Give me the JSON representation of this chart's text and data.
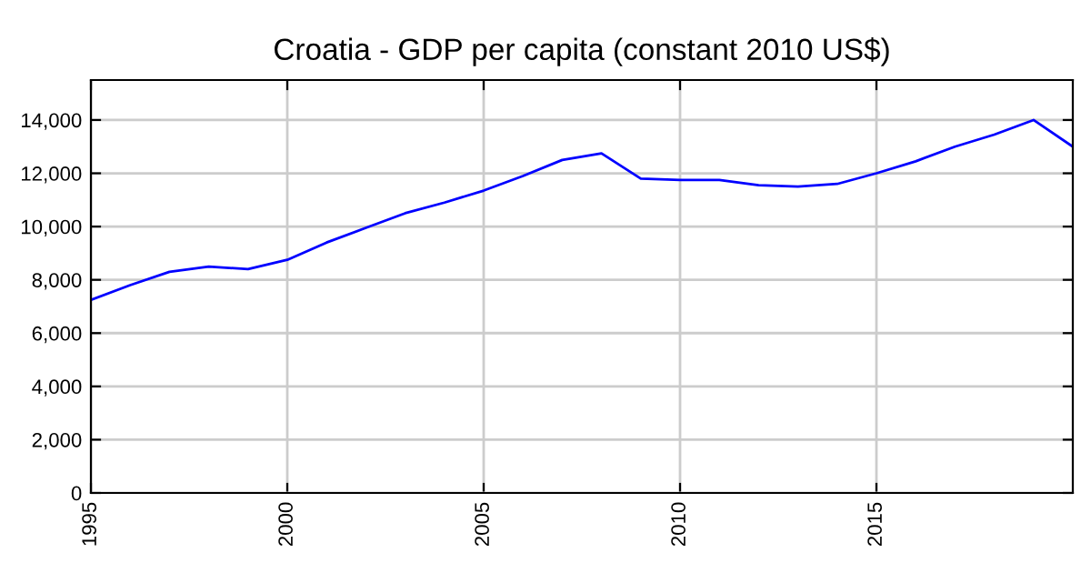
{
  "chart_data": {
    "type": "line",
    "title": "Croatia - GDP per capita (constant 2010 US$)",
    "x": [
      1995,
      1996,
      1997,
      1998,
      1999,
      2000,
      2001,
      2002,
      2003,
      2004,
      2005,
      2006,
      2007,
      2008,
      2009,
      2010,
      2011,
      2012,
      2013,
      2014,
      2015,
      2016,
      2017,
      2018,
      2019,
      2020
    ],
    "series": [
      {
        "color": "#0000ff",
        "values": [
          7250,
          7800,
          8300,
          8500,
          8400,
          8750,
          9400,
          9950,
          10500,
          10900,
          11350,
          11900,
          12500,
          12750,
          11800,
          11750,
          11750,
          11550,
          11500,
          11600,
          12000,
          12450,
          13000,
          13450,
          14000,
          13000
        ]
      }
    ],
    "xlim": [
      1995,
      2020
    ],
    "xticks": [
      1995,
      2000,
      2005,
      2010,
      2015
    ],
    "ylim": [
      0,
      15500
    ],
    "yticks": [
      {
        "value": 0,
        "label": "0"
      },
      {
        "value": 2000,
        "label": "2,000"
      },
      {
        "value": 4000,
        "label": "4,000"
      },
      {
        "value": 6000,
        "label": "6,000"
      },
      {
        "value": 8000,
        "label": "8,000"
      },
      {
        "value": 10000,
        "label": "10,000"
      },
      {
        "value": 12000,
        "label": "12,000"
      },
      {
        "value": 14000,
        "label": "14,000"
      }
    ],
    "grid": true,
    "legend": false
  }
}
